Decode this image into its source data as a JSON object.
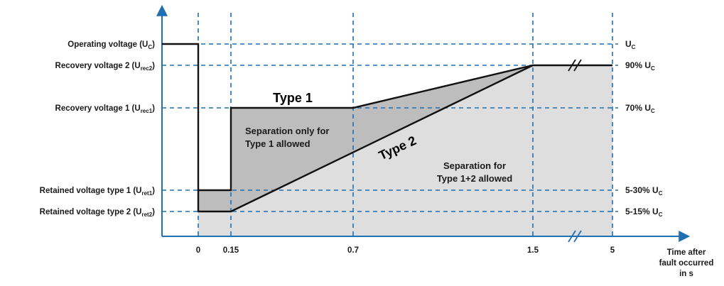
{
  "diagram": {
    "left_labels": [
      {
        "main": "Operating voltage (U",
        "sub": "C",
        "close": ")"
      },
      {
        "main": "Recovery voltage 2 (U",
        "sub": "rec2",
        "close": ")"
      },
      {
        "main": "Recovery voltage 1 (U",
        "sub": "rec1",
        "close": ")"
      },
      {
        "main": "Retained voltage type 1 (U",
        "sub": "ret1",
        "close": ")"
      },
      {
        "main": "Retained voltage type 2 (U",
        "sub": "ret2",
        "close": ")"
      }
    ],
    "right_labels": [
      {
        "main": "U",
        "sub": "C"
      },
      {
        "main": "90% U",
        "sub": "C"
      },
      {
        "main": "70% U",
        "sub": "C"
      },
      {
        "main": "5-30% U",
        "sub": "C"
      },
      {
        "main": "5-15% U",
        "sub": "C"
      }
    ],
    "x_ticks": [
      "0",
      "0.15",
      "0.7",
      "1.5",
      "5"
    ],
    "x_axis_title": [
      "Time after",
      "fault occurred",
      "in s"
    ],
    "type1_label": "Type 1",
    "type2_label": "Type 2",
    "region_type1": [
      "Separation only for",
      "Type 1 allowed"
    ],
    "region_both": [
      "Separation for",
      "Type 1+2 allowed"
    ],
    "colors": {
      "axis": "#1f6fb4",
      "grid": "#1f6fb4",
      "line": "#111111",
      "fill_dark": "#bdbdbd",
      "fill_light": "#dedede"
    }
  }
}
